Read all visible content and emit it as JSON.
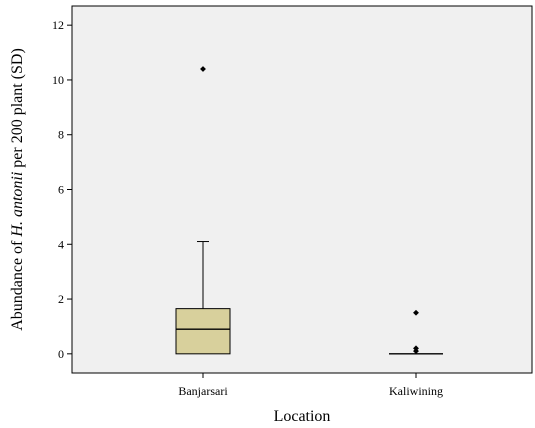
{
  "chart_data": {
    "type": "box",
    "xlabel": "Location",
    "ylabel": {
      "prefix": "Abundance of ",
      "italic": "H. antonii",
      "suffix": " per 200 plant (SD)"
    },
    "ylim": [
      -0.7,
      12.7
    ],
    "yticks": [
      0,
      2,
      4,
      6,
      8,
      10,
      12
    ],
    "yticks_labels": [
      "0",
      "2",
      "4",
      "6",
      "8",
      "10",
      "12"
    ],
    "categories": [
      "Banjarsari",
      "Kaliwining"
    ],
    "boxes": [
      {
        "category": "Banjarsari",
        "min": 0,
        "q1": 0,
        "median": 0.9,
        "q3": 1.65,
        "max": 4.1,
        "outliers": [
          10.4
        ]
      },
      {
        "category": "Kaliwining",
        "min": 0,
        "q1": 0,
        "median": 0,
        "q3": 0,
        "max": 0,
        "outliers": [
          0.1,
          0.2,
          1.5
        ]
      }
    ],
    "box_color": "#d8d09c",
    "plot_background": "#f0f0f0",
    "grid": false,
    "legend": "none"
  }
}
